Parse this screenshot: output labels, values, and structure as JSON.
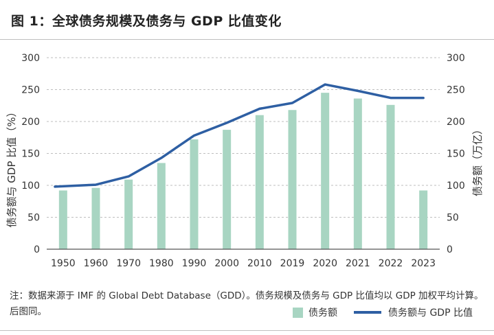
{
  "chart_data": {
    "type": "bar+line",
    "title": "图 1：全球债务规模及债务与 GDP 比值变化",
    "categories": [
      "1950",
      "1960",
      "1970",
      "1980",
      "1990",
      "2000",
      "2010",
      "2019",
      "2020",
      "2021",
      "2022",
      "2023"
    ],
    "series": [
      {
        "name": "债务额",
        "type": "bar",
        "axis": "right",
        "color": "#a8d5c2",
        "values": [
          92,
          96,
          109,
          135,
          172,
          187,
          210,
          218,
          245,
          236,
          226,
          92
        ]
      },
      {
        "name": "债务额与 GDP 比值",
        "type": "line",
        "axis": "left",
        "color": "#2e5fa3",
        "values": [
          98,
          101,
          114,
          143,
          178,
          198,
          220,
          229,
          258,
          248,
          237,
          237
        ]
      }
    ],
    "ylabel_left": "债务额与 GDP 比值（%）",
    "ylabel_right": "债务额（万亿）",
    "ylim_left": [
      0,
      300
    ],
    "ylim_right": [
      0,
      300
    ],
    "yticks": [
      0,
      50,
      100,
      150,
      200,
      250,
      300
    ],
    "grid": "horizontal-dashed",
    "legend_position": "bottom-right"
  },
  "note": "注：数据来源于 IMF 的 Global Debt Database（GDD）。债务规模及债务与 GDP 比值均以 GDP 加权平均计算。后图同。"
}
